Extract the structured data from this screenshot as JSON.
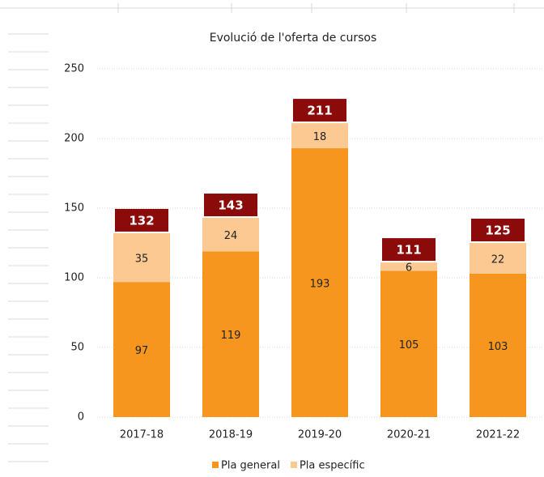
{
  "chart_data": {
    "type": "stacked_bar",
    "title": "Evolució de l'oferta de cursos",
    "categories": [
      "2017-18",
      "2018-19",
      "2019-20",
      "2020-21",
      "2021-22"
    ],
    "series": [
      {
        "name": "Pla general",
        "color": "#f7961f",
        "values": [
          97,
          119,
          193,
          105,
          103
        ]
      },
      {
        "name": "Pla específic",
        "color": "#fbc991",
        "values": [
          35,
          24,
          18,
          6,
          22
        ]
      }
    ],
    "totals": [
      132,
      143,
      211,
      111,
      125
    ],
    "total_color": "#8b0a0a",
    "ylim": [
      0,
      250
    ],
    "yticks": [
      0,
      50,
      100,
      150,
      200,
      250
    ],
    "grid": true,
    "legend": "bottom"
  }
}
